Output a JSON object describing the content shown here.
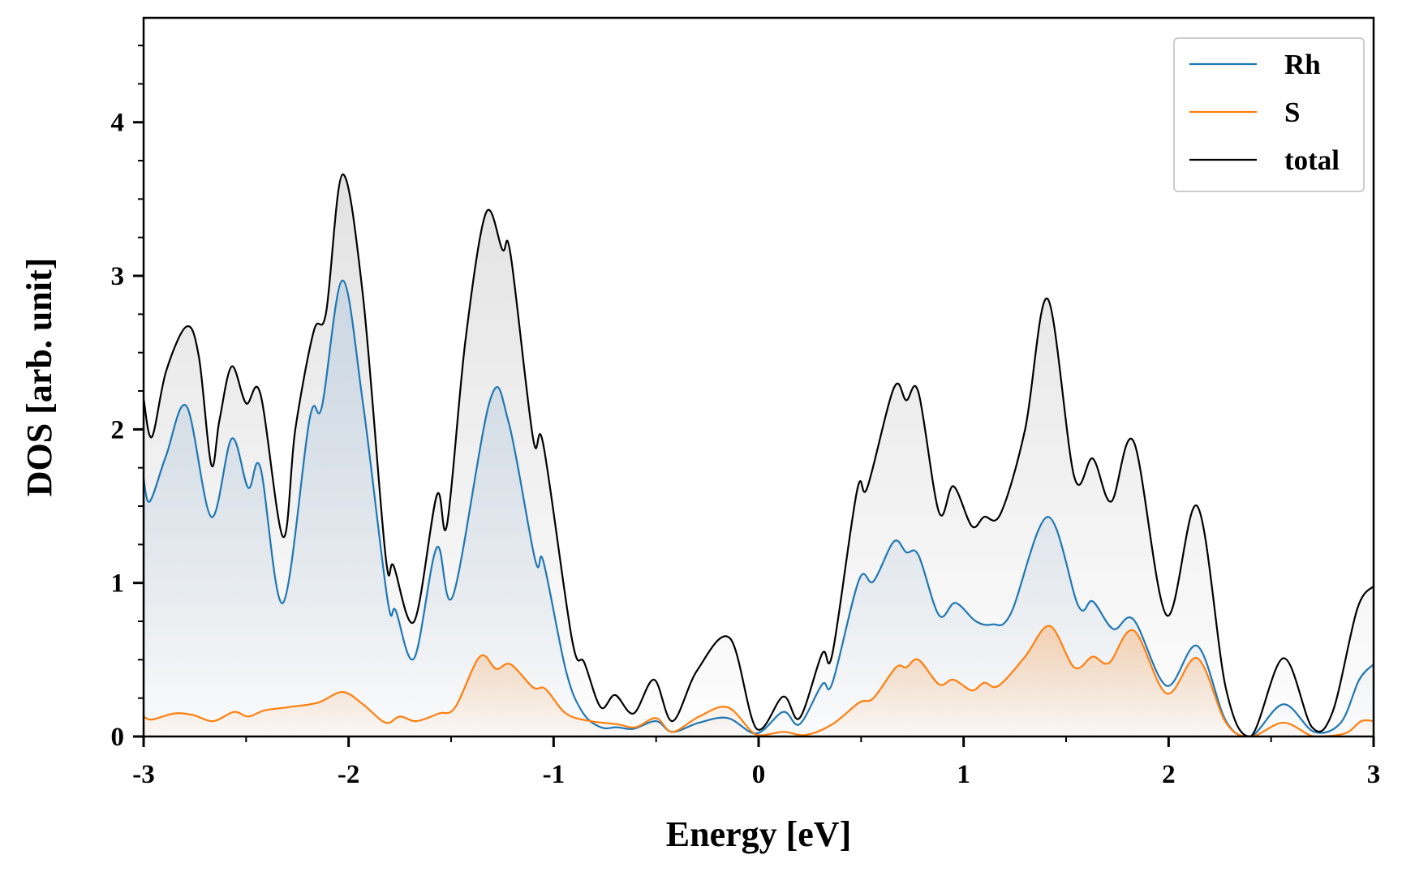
{
  "chart_data": {
    "type": "line",
    "title": "",
    "xlabel": "Energy [eV]",
    "ylabel": "DOS [arb. unit]",
    "xlim": [
      -3,
      3
    ],
    "ylim": [
      0,
      4.68
    ],
    "xticks": [
      -3,
      -2,
      -1,
      0,
      1,
      2,
      3
    ],
    "xtick_labels": [
      "-3",
      "-2",
      "-1",
      "0",
      "1",
      "2",
      "3"
    ],
    "yticks": [
      0,
      1,
      2,
      3,
      4
    ],
    "ytick_labels": [
      "0",
      "1",
      "2",
      "3",
      "4"
    ],
    "grid": false,
    "legend_position": "top-right",
    "series": [
      {
        "name": "Rh",
        "color": "#1f77b4",
        "fill": "#c9d6e3",
        "x": [
          -3,
          -2.97,
          -2.89,
          -2.79,
          -2.67,
          -2.57,
          -2.49,
          -2.43,
          -2.32,
          -2.19,
          -2.13,
          -2.03,
          -1.93,
          -1.81,
          -1.77,
          -1.68,
          -1.57,
          -1.49,
          -1.31,
          -1.22,
          -1.09,
          -1.05,
          -0.94,
          -0.86,
          -0.77,
          -0.69,
          -0.61,
          -0.5,
          -0.42,
          -0.29,
          -0.15,
          -0.01,
          0.12,
          0.2,
          0.31,
          0.36,
          0.49,
          0.56,
          0.66,
          0.72,
          0.78,
          0.88,
          0.96,
          1.06,
          1.14,
          1.23,
          1.41,
          1.56,
          1.63,
          1.73,
          1.83,
          1.99,
          2.14,
          2.28,
          2.4,
          2.56,
          2.71,
          2.84,
          2.93,
          3
        ],
        "y": [
          1.68,
          1.53,
          1.83,
          2.15,
          1.43,
          1.94,
          1.62,
          1.75,
          0.87,
          2.07,
          2.15,
          2.97,
          2.17,
          0.89,
          0.82,
          0.51,
          1.23,
          0.92,
          2.19,
          2.05,
          1.15,
          1.14,
          0.43,
          0.16,
          0.06,
          0.06,
          0.05,
          0.1,
          0.03,
          0.09,
          0.12,
          0.02,
          0.16,
          0.08,
          0.34,
          0.35,
          1.02,
          1.01,
          1.27,
          1.2,
          1.18,
          0.79,
          0.87,
          0.75,
          0.73,
          0.8,
          1.43,
          0.85,
          0.88,
          0.7,
          0.76,
          0.33,
          0.59,
          0.1,
          0.0,
          0.21,
          0.03,
          0.09,
          0.37,
          0.47
        ]
      },
      {
        "name": "S",
        "color": "#ff7f0e",
        "fill": "#f5c9a2",
        "x": [
          -3,
          -2.96,
          -2.85,
          -2.76,
          -2.66,
          -2.56,
          -2.49,
          -2.41,
          -2.3,
          -2.15,
          -2.03,
          -1.93,
          -1.82,
          -1.75,
          -1.67,
          -1.56,
          -1.48,
          -1.36,
          -1.28,
          -1.21,
          -1.1,
          -1.04,
          -0.94,
          -0.82,
          -0.69,
          -0.6,
          -0.5,
          -0.42,
          -0.29,
          -0.15,
          -0.01,
          0.12,
          0.23,
          0.36,
          0.49,
          0.56,
          0.67,
          0.72,
          0.78,
          0.88,
          0.95,
          1.04,
          1.1,
          1.17,
          1.3,
          1.42,
          1.54,
          1.63,
          1.71,
          1.83,
          1.99,
          2.14,
          2.28,
          2.4,
          2.56,
          2.71,
          2.86,
          2.94,
          3
        ],
        "y": [
          0.13,
          0.11,
          0.15,
          0.14,
          0.1,
          0.16,
          0.13,
          0.17,
          0.19,
          0.22,
          0.29,
          0.21,
          0.09,
          0.13,
          0.1,
          0.15,
          0.19,
          0.52,
          0.44,
          0.47,
          0.32,
          0.31,
          0.15,
          0.1,
          0.08,
          0.06,
          0.12,
          0.03,
          0.13,
          0.19,
          0.01,
          0.03,
          0.01,
          0.08,
          0.22,
          0.25,
          0.45,
          0.45,
          0.5,
          0.34,
          0.37,
          0.3,
          0.35,
          0.33,
          0.52,
          0.72,
          0.45,
          0.52,
          0.48,
          0.69,
          0.28,
          0.51,
          0.09,
          0.0,
          0.09,
          0.0,
          0.02,
          0.1,
          0.1
        ]
      },
      {
        "name": "total",
        "color": "#000000",
        "fill": "#d9d9d9",
        "x": [
          -3,
          -2.96,
          -2.89,
          -2.79,
          -2.73,
          -2.67,
          -2.63,
          -2.57,
          -2.5,
          -2.43,
          -2.32,
          -2.26,
          -2.17,
          -2.11,
          -2.03,
          -1.93,
          -1.82,
          -1.78,
          -1.68,
          -1.57,
          -1.52,
          -1.43,
          -1.33,
          -1.25,
          -1.21,
          -1.1,
          -1.05,
          -0.91,
          -0.85,
          -0.77,
          -0.7,
          -0.61,
          -0.51,
          -0.42,
          -0.3,
          -0.14,
          -0.01,
          0.12,
          0.2,
          0.31,
          0.36,
          0.48,
          0.53,
          0.66,
          0.72,
          0.78,
          0.88,
          0.95,
          1.04,
          1.1,
          1.18,
          1.3,
          1.41,
          1.54,
          1.63,
          1.72,
          1.83,
          1.99,
          2.14,
          2.28,
          2.4,
          2.56,
          2.7,
          2.8,
          2.92,
          3
        ],
        "y": [
          2.2,
          1.95,
          2.38,
          2.67,
          2.47,
          1.77,
          2.06,
          2.41,
          2.17,
          2.23,
          1.3,
          2.0,
          2.64,
          2.76,
          3.66,
          2.87,
          1.18,
          1.11,
          0.75,
          1.57,
          1.38,
          2.58,
          3.41,
          3.17,
          3.14,
          1.94,
          1.9,
          0.63,
          0.48,
          0.19,
          0.27,
          0.15,
          0.37,
          0.1,
          0.43,
          0.64,
          0.05,
          0.26,
          0.12,
          0.54,
          0.54,
          1.6,
          1.62,
          2.27,
          2.19,
          2.24,
          1.46,
          1.63,
          1.37,
          1.43,
          1.45,
          2.0,
          2.85,
          1.69,
          1.81,
          1.53,
          1.92,
          0.79,
          1.5,
          0.31,
          0.0,
          0.51,
          0.06,
          0.16,
          0.83,
          0.98
        ]
      }
    ]
  }
}
